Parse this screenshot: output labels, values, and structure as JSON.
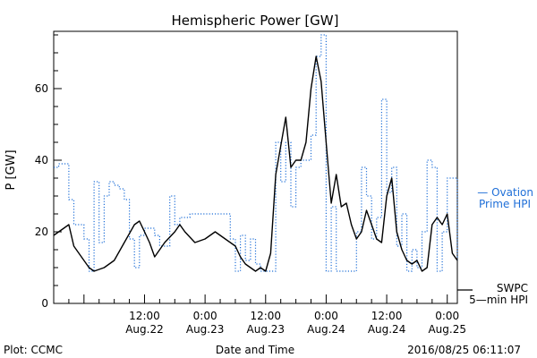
{
  "chart_data": {
    "type": "line",
    "title": "Hemispheric Power [GW]",
    "xlabel": "Date and Time",
    "ylabel": "P [GW]",
    "xlim": [
      "2016-08-21T18:00",
      "2016-08-25T02:00"
    ],
    "ylim": [
      0,
      76
    ],
    "y_ticks": [
      0,
      20,
      40,
      60
    ],
    "x_ticks": [
      {
        "x": "2016-08-22T12:00",
        "time": "12:00",
        "date": "Aug.22"
      },
      {
        "x": "2016-08-23T00:00",
        "time": "0:00",
        "date": "Aug.23"
      },
      {
        "x": "2016-08-23T12:00",
        "time": "12:00",
        "date": "Aug.23"
      },
      {
        "x": "2016-08-24T00:00",
        "time": "0:00",
        "date": "Aug.24"
      },
      {
        "x": "2016-08-24T12:00",
        "time": "12:00",
        "date": "Aug.24"
      },
      {
        "x": "2016-08-25T00:00",
        "time": "0:00",
        "date": "Aug.25"
      }
    ],
    "grid": false,
    "series": [
      {
        "name": "Ovation Prime HPI",
        "name_lines": [
          "— Ovation",
          "Prime HPI"
        ],
        "color": "#1f6fd8",
        "style": "dotted",
        "points": [
          [
            "2016-08-21T18:00",
            38
          ],
          [
            "2016-08-21T19:00",
            39
          ],
          [
            "2016-08-21T20:00",
            39
          ],
          [
            "2016-08-21T21:00",
            29
          ],
          [
            "2016-08-21T22:00",
            22
          ],
          [
            "2016-08-22T00:00",
            18
          ],
          [
            "2016-08-22T01:00",
            9
          ],
          [
            "2016-08-22T02:00",
            34
          ],
          [
            "2016-08-22T03:00",
            17
          ],
          [
            "2016-08-22T04:00",
            30
          ],
          [
            "2016-08-22T05:00",
            34
          ],
          [
            "2016-08-22T06:00",
            33
          ],
          [
            "2016-08-22T07:00",
            32
          ],
          [
            "2016-08-22T08:00",
            29
          ],
          [
            "2016-08-22T09:00",
            18
          ],
          [
            "2016-08-22T10:00",
            10
          ],
          [
            "2016-08-22T11:00",
            19
          ],
          [
            "2016-08-22T12:00",
            21
          ],
          [
            "2016-08-22T14:00",
            19
          ],
          [
            "2016-08-22T15:00",
            16
          ],
          [
            "2016-08-22T16:00",
            16
          ],
          [
            "2016-08-22T17:00",
            30
          ],
          [
            "2016-08-22T18:00",
            22
          ],
          [
            "2016-08-22T19:00",
            24
          ],
          [
            "2016-08-22T21:00",
            25
          ],
          [
            "2016-08-23T04:00",
            25
          ],
          [
            "2016-08-23T05:00",
            18
          ],
          [
            "2016-08-23T06:00",
            9
          ],
          [
            "2016-08-23T07:00",
            19
          ],
          [
            "2016-08-23T08:00",
            12
          ],
          [
            "2016-08-23T09:00",
            18
          ],
          [
            "2016-08-23T10:00",
            11
          ],
          [
            "2016-08-23T11:00",
            9
          ],
          [
            "2016-08-23T12:00",
            9
          ],
          [
            "2016-08-23T13:00",
            9
          ],
          [
            "2016-08-23T14:00",
            45
          ],
          [
            "2016-08-23T15:00",
            34
          ],
          [
            "2016-08-23T16:00",
            45
          ],
          [
            "2016-08-23T17:00",
            27
          ],
          [
            "2016-08-23T18:00",
            38
          ],
          [
            "2016-08-23T19:00",
            40
          ],
          [
            "2016-08-23T20:00",
            40
          ],
          [
            "2016-08-23T21:00",
            47
          ],
          [
            "2016-08-23T22:00",
            69
          ],
          [
            "2016-08-23T23:00",
            75
          ],
          [
            "2016-08-24T00:00",
            9
          ],
          [
            "2016-08-24T01:00",
            27
          ],
          [
            "2016-08-24T02:00",
            9
          ],
          [
            "2016-08-24T04:00",
            9
          ],
          [
            "2016-08-24T05:00",
            9
          ],
          [
            "2016-08-24T06:00",
            20
          ],
          [
            "2016-08-24T07:00",
            38
          ],
          [
            "2016-08-24T08:00",
            30
          ],
          [
            "2016-08-24T09:00",
            18
          ],
          [
            "2016-08-24T10:00",
            24
          ],
          [
            "2016-08-24T11:00",
            57
          ],
          [
            "2016-08-24T12:00",
            31
          ],
          [
            "2016-08-24T13:00",
            38
          ],
          [
            "2016-08-24T14:00",
            16
          ],
          [
            "2016-08-24T15:00",
            25
          ],
          [
            "2016-08-24T16:00",
            9
          ],
          [
            "2016-08-24T17:00",
            15
          ],
          [
            "2016-08-24T18:00",
            10
          ],
          [
            "2016-08-24T19:00",
            20
          ],
          [
            "2016-08-24T20:00",
            40
          ],
          [
            "2016-08-24T21:00",
            38
          ],
          [
            "2016-08-24T22:00",
            9
          ],
          [
            "2016-08-24T23:00",
            20
          ],
          [
            "2016-08-25T00:00",
            35
          ],
          [
            "2016-08-25T01:00",
            35
          ],
          [
            "2016-08-25T02:00",
            12
          ]
        ]
      },
      {
        "name": "SWPC 5-min HPI",
        "name_lines": [
          "SWPC",
          "5—min HPI"
        ],
        "color": "#000000",
        "style": "solid",
        "points": [
          [
            "2016-08-21T18:00",
            19
          ],
          [
            "2016-08-21T19:00",
            20
          ],
          [
            "2016-08-21T20:00",
            21
          ],
          [
            "2016-08-21T21:00",
            22
          ],
          [
            "2016-08-21T22:00",
            16
          ],
          [
            "2016-08-22T00:00",
            12
          ],
          [
            "2016-08-22T01:00",
            10
          ],
          [
            "2016-08-22T02:00",
            9
          ],
          [
            "2016-08-22T04:00",
            10
          ],
          [
            "2016-08-22T06:00",
            12
          ],
          [
            "2016-08-22T08:00",
            17
          ],
          [
            "2016-08-22T10:00",
            22
          ],
          [
            "2016-08-22T11:00",
            23
          ],
          [
            "2016-08-22T12:00",
            20
          ],
          [
            "2016-08-22T13:00",
            17
          ],
          [
            "2016-08-22T14:00",
            13
          ],
          [
            "2016-08-22T16:00",
            17
          ],
          [
            "2016-08-22T18:00",
            20
          ],
          [
            "2016-08-22T19:00",
            22
          ],
          [
            "2016-08-22T20:00",
            20
          ],
          [
            "2016-08-22T22:00",
            17
          ],
          [
            "2016-08-23T00:00",
            18
          ],
          [
            "2016-08-23T02:00",
            20
          ],
          [
            "2016-08-23T04:00",
            18
          ],
          [
            "2016-08-23T06:00",
            16
          ],
          [
            "2016-08-23T07:00",
            13
          ],
          [
            "2016-08-23T08:00",
            11
          ],
          [
            "2016-08-23T10:00",
            9
          ],
          [
            "2016-08-23T11:00",
            10
          ],
          [
            "2016-08-23T12:00",
            9
          ],
          [
            "2016-08-23T13:00",
            14
          ],
          [
            "2016-08-23T14:00",
            36
          ],
          [
            "2016-08-23T15:00",
            44
          ],
          [
            "2016-08-23T16:00",
            52
          ],
          [
            "2016-08-23T17:00",
            38
          ],
          [
            "2016-08-23T18:00",
            40
          ],
          [
            "2016-08-23T19:00",
            40
          ],
          [
            "2016-08-23T20:00",
            45
          ],
          [
            "2016-08-23T21:00",
            60
          ],
          [
            "2016-08-23T22:00",
            69
          ],
          [
            "2016-08-23T23:00",
            62
          ],
          [
            "2016-08-24T00:00",
            45
          ],
          [
            "2016-08-24T01:00",
            28
          ],
          [
            "2016-08-24T02:00",
            36
          ],
          [
            "2016-08-24T03:00",
            27
          ],
          [
            "2016-08-24T04:00",
            28
          ],
          [
            "2016-08-24T05:00",
            22
          ],
          [
            "2016-08-24T06:00",
            18
          ],
          [
            "2016-08-24T07:00",
            20
          ],
          [
            "2016-08-24T08:00",
            26
          ],
          [
            "2016-08-24T09:00",
            22
          ],
          [
            "2016-08-24T10:00",
            18
          ],
          [
            "2016-08-24T11:00",
            17
          ],
          [
            "2016-08-24T12:00",
            30
          ],
          [
            "2016-08-24T13:00",
            35
          ],
          [
            "2016-08-24T14:00",
            20
          ],
          [
            "2016-08-24T15:00",
            15
          ],
          [
            "2016-08-24T16:00",
            12
          ],
          [
            "2016-08-24T17:00",
            11
          ],
          [
            "2016-08-24T18:00",
            12
          ],
          [
            "2016-08-24T19:00",
            9
          ],
          [
            "2016-08-24T20:00",
            10
          ],
          [
            "2016-08-24T21:00",
            22
          ],
          [
            "2016-08-24T22:00",
            24
          ],
          [
            "2016-08-24T23:00",
            22
          ],
          [
            "2016-08-25T00:00",
            25
          ],
          [
            "2016-08-25T01:00",
            14
          ],
          [
            "2016-08-25T02:00",
            12
          ]
        ]
      }
    ],
    "footer_left": "Plot: CCMC",
    "footer_right": "2016/08/25 06:11:07"
  }
}
